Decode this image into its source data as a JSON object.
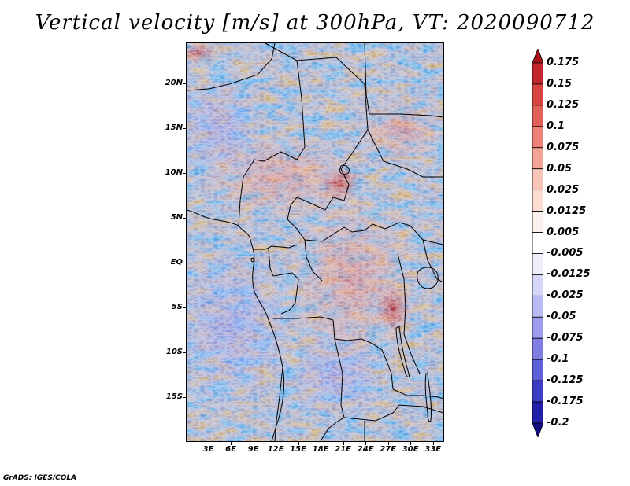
{
  "title": "Vertical velocity [m/s] at 300hPa, VT: 2020090712",
  "credit": "GrADS: IGES/COLA",
  "map": {
    "lat_labels": [
      "20N",
      "15N",
      "10N",
      "5N",
      "EQ",
      "5S",
      "10S",
      "15S"
    ],
    "lat_values": [
      20,
      15,
      10,
      5,
      0,
      -5,
      -10,
      -15
    ],
    "lon_labels": [
      "3E",
      "6E",
      "9E",
      "12E",
      "15E",
      "18E",
      "21E",
      "24E",
      "27E",
      "30E",
      "33E"
    ],
    "lon_values": [
      3,
      6,
      9,
      12,
      15,
      18,
      21,
      24,
      27,
      30,
      33
    ],
    "lat_range": [
      -20,
      24.6
    ],
    "lon_range": [
      0,
      34.5
    ]
  },
  "colorbar": {
    "levels": [
      "0.175",
      "0.15",
      "0.125",
      "0.1",
      "0.075",
      "0.05",
      "0.025",
      "0.0125",
      "0.005",
      "-0.005",
      "-0.0125",
      "-0.025",
      "-0.05",
      "-0.075",
      "-0.1",
      "-0.125",
      "-0.175",
      "-0.2"
    ],
    "colors": [
      "#a50f15",
      "#c1272d",
      "#d6453f",
      "#e2625a",
      "#ec8276",
      "#f3a396",
      "#f8c4b8",
      "#fbdcd3",
      "#fdf0ec",
      "#ffffff",
      "#eeeefc",
      "#d6d6f8",
      "#bbbbf3",
      "#9d9dec",
      "#7f7fe3",
      "#5f5fd6",
      "#3c3cc4",
      "#2020a8",
      "#0d0d80"
    ]
  }
}
